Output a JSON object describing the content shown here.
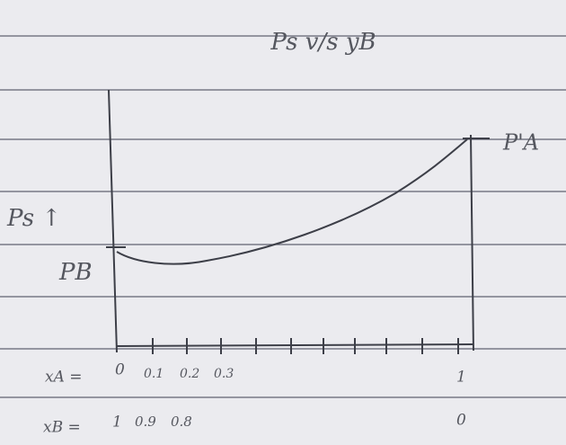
{
  "title": "Ps v/s yB",
  "y_axis_label": "Ps ↑",
  "left_end_label": "PB",
  "right_end_label": "P'A",
  "x_a": {
    "label": "xA =",
    "ticks": [
      "0",
      "0.1",
      "0.2",
      "0.3",
      "1"
    ]
  },
  "x_b": {
    "label": "xB =",
    "ticks": [
      "1",
      "0.9",
      "0.8",
      "0"
    ]
  }
}
